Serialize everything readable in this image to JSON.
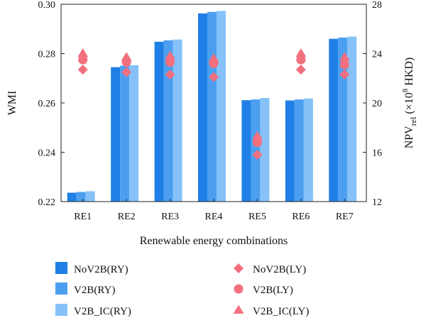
{
  "chart_data": {
    "type": "bar",
    "xlabel": "Renewable energy combinations",
    "ylabel_left": "WMI",
    "ylabel_right": {
      "base": "NPV",
      "sub": "rel",
      "pre": " (×10",
      "sup": "8",
      "post": " HKD)"
    },
    "categories": [
      "RE1",
      "RE2",
      "RE3",
      "RE4",
      "RE5",
      "RE6",
      "RE7"
    ],
    "ylim_left": [
      0.22,
      0.3
    ],
    "yticks_left": [
      "0.22",
      "0.24",
      "0.26",
      "0.28",
      "0.30"
    ],
    "ylim_right": [
      12,
      28
    ],
    "yticks_right": [
      "12",
      "16",
      "20",
      "24",
      "28"
    ],
    "bar_series": [
      {
        "name": "NoV2B(RY)",
        "color": "#1f7fe6",
        "values": [
          0.2236,
          0.2745,
          0.2848,
          0.2963,
          0.2611,
          0.261,
          0.286
        ]
      },
      {
        "name": "V2B(RY)",
        "color": "#4c9ff0",
        "values": [
          0.2239,
          0.2751,
          0.2854,
          0.2969,
          0.2614,
          0.2614,
          0.2865
        ]
      },
      {
        "name": "V2B_IC(RY)",
        "color": "#86c2f8",
        "values": [
          0.2242,
          0.2753,
          0.2857,
          0.2973,
          0.262,
          0.2618,
          0.2869
        ]
      }
    ],
    "marker_series": [
      {
        "name": "NoV2B(LY)",
        "marker": "diamond",
        "color": "#f2707e",
        "values": [
          22.7,
          22.5,
          22.3,
          22.1,
          15.8,
          22.7,
          22.3
        ]
      },
      {
        "name": "V2B(LY)",
        "marker": "circle",
        "color": "#f2707e",
        "values": [
          23.5,
          23.3,
          23.3,
          23.2,
          16.8,
          23.5,
          23.1
        ]
      },
      {
        "name": "V2B_IC(LY)",
        "marker": "triangle",
        "color": "#f2707e",
        "values": [
          24.0,
          23.7,
          23.8,
          23.6,
          17.3,
          24.0,
          23.7
        ]
      }
    ],
    "grid": false,
    "legend": "bottom"
  }
}
